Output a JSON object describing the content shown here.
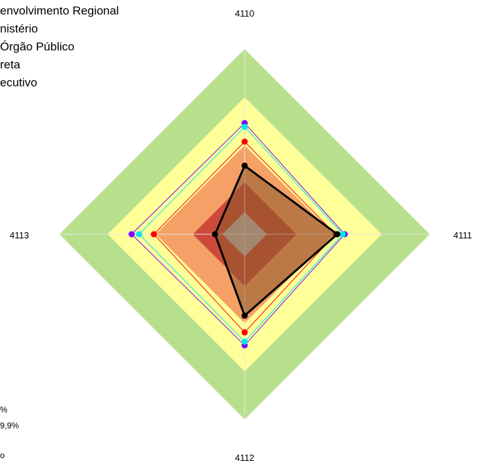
{
  "chart_data": {
    "type": "radar",
    "axes": [
      "4110",
      "4111",
      "4112",
      "4113"
    ],
    "legend": {
      "entries": [
        "envolvimento Regional",
        "nistério",
        "Órgão Público",
        "reta",
        "ecutivo"
      ]
    },
    "bottom_left_labels": [
      "%",
      "9,9%",
      "o"
    ],
    "scale": {
      "max": 100
    },
    "bands": [
      {
        "level": 100,
        "color": "#b8e08c"
      },
      {
        "level": 74,
        "color": "#ffff99"
      },
      {
        "level": 48,
        "color": "#f5a066"
      },
      {
        "level": 28,
        "color": "#cc4a3a"
      },
      {
        "level": 12,
        "color": "#c0c0c0"
      }
    ],
    "series": [
      {
        "color": "#7b00ff",
        "values": [
          60,
          54,
          60,
          61
        ]
      },
      {
        "color": "#00e5ee",
        "values": [
          58,
          53,
          58,
          57
        ]
      },
      {
        "color": "#ff0000",
        "values": [
          50,
          49,
          53,
          49
        ]
      },
      {
        "color": "#000000",
        "values": [
          37,
          50,
          44,
          16
        ],
        "filled": true,
        "fill": "#8b5a2b",
        "fill_opacity": 0.55
      }
    ]
  }
}
